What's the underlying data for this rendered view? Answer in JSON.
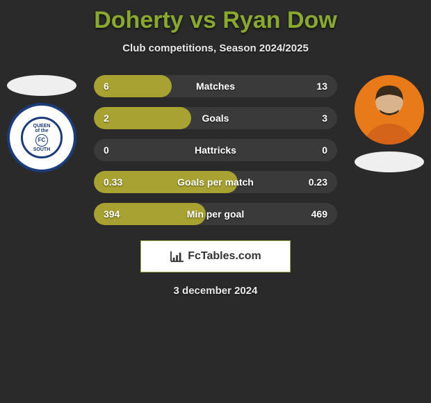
{
  "title": "Doherty vs Ryan Dow",
  "subtitle": "Club competitions, Season 2024/2025",
  "date": "3 december 2024",
  "logo_text": "FcTables.com",
  "colors": {
    "accent_title": "#89a832",
    "bar_fill": "#a8a232",
    "background": "#2a2a2a",
    "text": "#e8e8e8"
  },
  "left_badge": {
    "text_top": "QUEEN",
    "text_mid": "of the",
    "text_bottom": "SOUTH",
    "center": "FC"
  },
  "rows": [
    {
      "label": "Matches",
      "left": "6",
      "right": "13",
      "fill_pct": 32
    },
    {
      "label": "Goals",
      "left": "2",
      "right": "3",
      "fill_pct": 40
    },
    {
      "label": "Hattricks",
      "left": "0",
      "right": "0",
      "fill_pct": 0
    },
    {
      "label": "Goals per match",
      "left": "0.33",
      "right": "0.23",
      "fill_pct": 59
    },
    {
      "label": "Min per goal",
      "left": "394",
      "right": "469",
      "fill_pct": 46
    }
  ]
}
